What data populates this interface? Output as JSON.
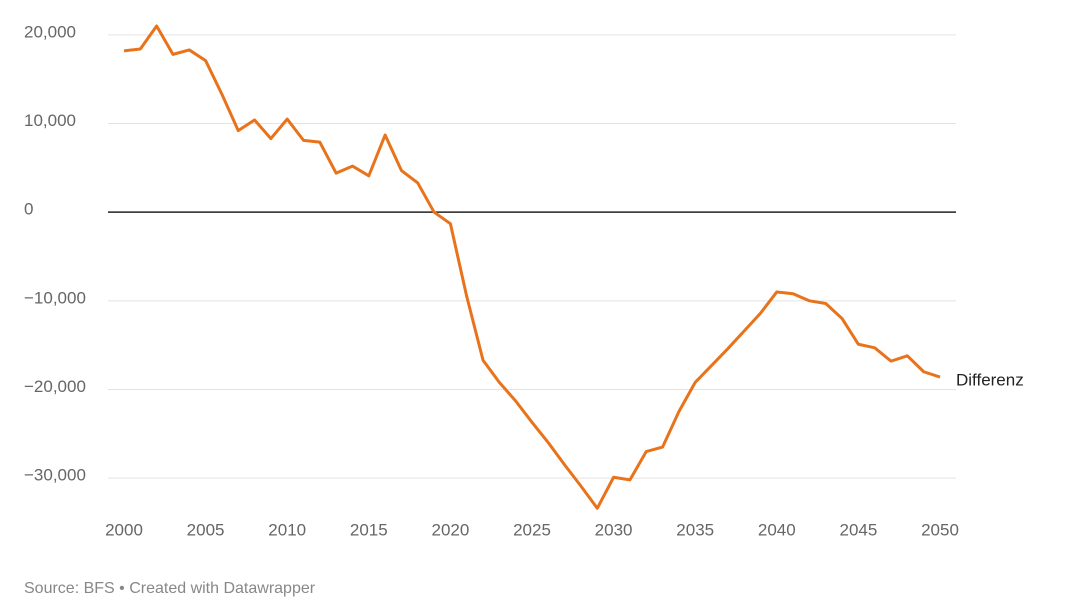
{
  "chart_data": {
    "type": "line",
    "x": [
      2000,
      2001,
      2002,
      2003,
      2004,
      2005,
      2006,
      2007,
      2008,
      2009,
      2010,
      2011,
      2012,
      2013,
      2014,
      2015,
      2016,
      2017,
      2018,
      2019,
      2020,
      2021,
      2022,
      2023,
      2024,
      2025,
      2026,
      2027,
      2028,
      2029,
      2030,
      2031,
      2032,
      2033,
      2034,
      2035,
      2036,
      2037,
      2038,
      2039,
      2040,
      2041,
      2042,
      2043,
      2044,
      2045,
      2046,
      2047,
      2048,
      2049,
      2050
    ],
    "series": [
      {
        "name": "Differenz",
        "color": "#e8731b",
        "values": [
          18200,
          18400,
          21000,
          17800,
          18300,
          17100,
          13300,
          9200,
          10400,
          8300,
          10500,
          8100,
          7900,
          4400,
          5200,
          4100,
          8700,
          4700,
          3300,
          0,
          -1300,
          -9500,
          -16700,
          -19200,
          -21300,
          -23700,
          -26000,
          -28500,
          -30900,
          -33400,
          -29900,
          -30200,
          -27000,
          -26500,
          -22500,
          -19200,
          -17300,
          -15400,
          -13400,
          -11400,
          -9000,
          -9200,
          -10000,
          -10300,
          -12000,
          -14900,
          -15300,
          -16800,
          -16200,
          -18000,
          -18600
        ]
      }
    ],
    "xlim": [
      2000,
      2050
    ],
    "xticks": [
      2000,
      2005,
      2010,
      2015,
      2020,
      2025,
      2030,
      2035,
      2040,
      2045,
      2050
    ],
    "ylim": [
      -34000,
      21000
    ],
    "yticks": [
      {
        "value": 20000,
        "label": "20,000"
      },
      {
        "value": 10000,
        "label": "10,000"
      },
      0,
      {
        "value": -10000,
        "label": "−10,000"
      },
      {
        "value": -20000,
        "label": "−20,000"
      },
      {
        "value": -30000,
        "label": "−30,000"
      }
    ],
    "grid": true,
    "source": "Source: BFS • Created with Datawrapper"
  }
}
